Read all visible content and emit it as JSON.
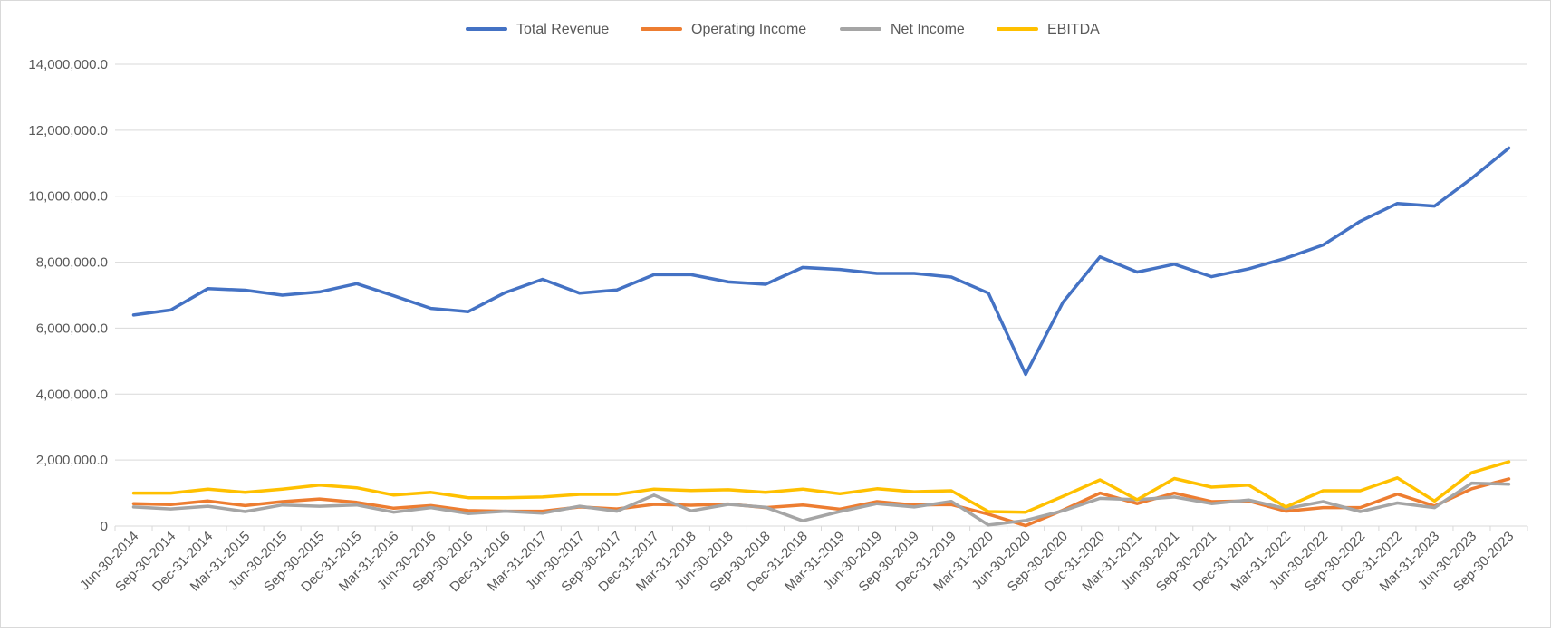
{
  "chart_data": {
    "type": "line",
    "title": "",
    "xlabel": "",
    "ylabel": "",
    "ylim": [
      0,
      14000000
    ],
    "yticks": [
      0,
      2000000,
      4000000,
      6000000,
      8000000,
      10000000,
      12000000,
      14000000
    ],
    "ytick_labels": [
      "0",
      "2,000,000.0",
      "4,000,000.0",
      "6,000,000.0",
      "8,000,000.0",
      "10,000,000.0",
      "12,000,000.0",
      "14,000,000.0"
    ],
    "grid": true,
    "legend_position": "top",
    "categories": [
      "Jun-30-2014",
      "Sep-30-2014",
      "Dec-31-2014",
      "Mar-31-2015",
      "Jun-30-2015",
      "Sep-30-2015",
      "Dec-31-2015",
      "Mar-31-2016",
      "Jun-30-2016",
      "Sep-30-2016",
      "Dec-31-2016",
      "Mar-31-2017",
      "Jun-30-2017",
      "Sep-30-2017",
      "Dec-31-2017",
      "Mar-31-2018",
      "Jun-30-2018",
      "Sep-30-2018",
      "Dec-31-2018",
      "Mar-31-2019",
      "Jun-30-2019",
      "Sep-30-2019",
      "Dec-31-2019",
      "Mar-31-2020",
      "Jun-30-2020",
      "Sep-30-2020",
      "Dec-31-2020",
      "Mar-31-2021",
      "Jun-30-2021",
      "Sep-30-2021",
      "Dec-31-2021",
      "Mar-31-2022",
      "Jun-30-2022",
      "Sep-30-2022",
      "Dec-31-2022",
      "Mar-31-2023",
      "Jun-30-2023",
      "Sep-30-2023"
    ],
    "series": [
      {
        "name": "Total Revenue",
        "color": "#4472c4",
        "values": [
          6400000,
          6550000,
          7200000,
          7150000,
          7000000,
          7100000,
          7350000,
          6980000,
          6600000,
          6500000,
          7080000,
          7480000,
          7060000,
          7160000,
          7620000,
          7620000,
          7400000,
          7330000,
          7840000,
          7780000,
          7660000,
          7660000,
          7550000,
          7060000,
          4600000,
          6780000,
          8160000,
          7700000,
          7940000,
          7560000,
          7800000,
          8120000,
          8520000,
          9240000,
          9780000,
          9700000,
          10540000,
          11460000
        ]
      },
      {
        "name": "Operating Income",
        "color": "#ed7d31",
        "values": [
          680000,
          650000,
          760000,
          620000,
          740000,
          820000,
          720000,
          540000,
          620000,
          470000,
          450000,
          450000,
          580000,
          520000,
          660000,
          630000,
          670000,
          560000,
          640000,
          510000,
          740000,
          640000,
          650000,
          360000,
          10000,
          480000,
          1000000,
          680000,
          1000000,
          740000,
          760000,
          450000,
          560000,
          560000,
          970000,
          610000,
          1130000,
          1430000
        ]
      },
      {
        "name": "Net Income",
        "color": "#a5a5a5",
        "values": [
          580000,
          520000,
          600000,
          440000,
          640000,
          600000,
          640000,
          420000,
          560000,
          380000,
          450000,
          390000,
          600000,
          450000,
          940000,
          460000,
          660000,
          570000,
          160000,
          440000,
          680000,
          580000,
          750000,
          30000,
          170000,
          460000,
          840000,
          800000,
          880000,
          680000,
          790000,
          530000,
          740000,
          440000,
          700000,
          560000,
          1300000,
          1270000
        ]
      },
      {
        "name": "EBITDA",
        "color": "#ffc000",
        "values": [
          1000000,
          1000000,
          1120000,
          1020000,
          1120000,
          1240000,
          1160000,
          940000,
          1020000,
          860000,
          860000,
          880000,
          960000,
          960000,
          1120000,
          1080000,
          1100000,
          1020000,
          1120000,
          980000,
          1130000,
          1040000,
          1070000,
          440000,
          420000,
          900000,
          1400000,
          800000,
          1440000,
          1180000,
          1240000,
          580000,
          1070000,
          1070000,
          1460000,
          760000,
          1620000,
          1950000
        ]
      }
    ]
  }
}
